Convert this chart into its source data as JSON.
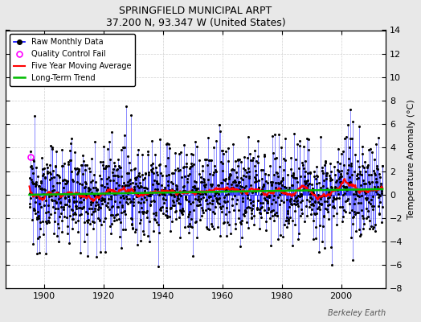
{
  "title": "SPRINGFIELD MUNICIPAL ARPT",
  "subtitle": "37.200 N, 93.347 W (United States)",
  "ylabel": "Temperature Anomaly (°C)",
  "watermark": "Berkeley Earth",
  "ylim": [
    -8,
    14
  ],
  "yticks": [
    -8,
    -6,
    -4,
    -2,
    0,
    2,
    4,
    6,
    8,
    10,
    12,
    14
  ],
  "xlim": [
    1887,
    2015
  ],
  "xticks": [
    1900,
    1920,
    1940,
    1960,
    1980,
    2000
  ],
  "start_year": 1895,
  "end_year": 2013,
  "raw_color": "#0000ff",
  "ma_color": "#ff0000",
  "trend_color": "#00bb00",
  "qc_color": "#ff00ff",
  "bg_color": "#e8e8e8",
  "plot_bg_color": "#ffffff",
  "grid_color": "#d0d0d0",
  "seed": 12345
}
